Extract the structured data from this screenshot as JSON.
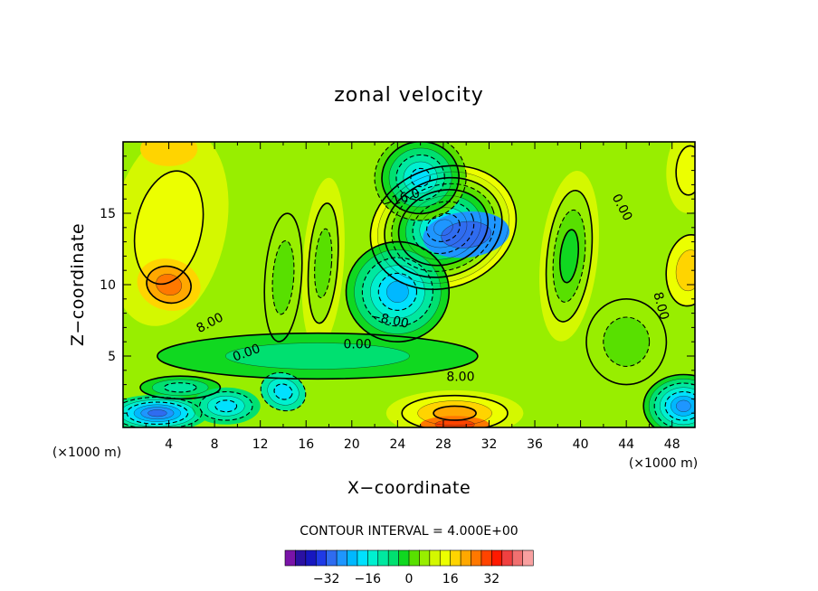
{
  "chart_data": {
    "type": "contour",
    "title": "zonal velocity",
    "xlabel": "X−coordinate",
    "ylabel": "Z−coordinate",
    "x_unit_left": "(×1000 m)",
    "x_unit_right": "(×1000 m)",
    "xlim": [
      0,
      50
    ],
    "ylim": [
      0,
      20
    ],
    "x_ticks": [
      4,
      8,
      12,
      16,
      20,
      24,
      28,
      32,
      36,
      40,
      44,
      48
    ],
    "y_ticks": [
      5,
      10,
      15
    ],
    "contour_interval_text": "CONTOUR INTERVAL = 4.000E+00",
    "contour_labels": [
      {
        "text": "−16.0",
        "x": 24.3,
        "y": 16.0,
        "angle": -18
      },
      {
        "text": "0.00",
        "x": 43.6,
        "y": 15.4,
        "angle": 62
      },
      {
        "text": "8.00",
        "x": 7.6,
        "y": 7.3,
        "angle": -28
      },
      {
        "text": "−8.00",
        "x": 23.3,
        "y": 7.5,
        "angle": 12
      },
      {
        "text": "8.00",
        "x": 47.0,
        "y": 8.5,
        "angle": 75
      },
      {
        "text": "0.00",
        "x": 10.8,
        "y": 5.2,
        "angle": -20
      },
      {
        "text": "0.00",
        "x": 20.5,
        "y": 5.8,
        "angle": 0
      },
      {
        "text": "8.00",
        "x": 29.5,
        "y": 3.5,
        "angle": 0
      }
    ],
    "field_features": [
      {
        "x": 28,
        "y": 14,
        "sx": 6.5,
        "sy": 4.2,
        "a": -20
      },
      {
        "x": 30,
        "y": 13.5,
        "sx": 3.8,
        "sy": 1.6,
        "a": -6
      },
      {
        "x": 26,
        "y": 17.5,
        "sx": 4.0,
        "sy": 3.0,
        "a": -6
      },
      {
        "x": 24,
        "y": 9.5,
        "sx": 4.5,
        "sy": 3.5,
        "a": -4
      },
      {
        "x": 17.5,
        "y": 11.5,
        "sx": 1.8,
        "sy": 6.0,
        "a": 4
      },
      {
        "x": 14,
        "y": 10.5,
        "sx": 1.6,
        "sy": 4.5,
        "a": 4
      },
      {
        "x": 39,
        "y": 12,
        "sx": 2.5,
        "sy": 6.0,
        "a": 6
      },
      {
        "x": 4,
        "y": 14,
        "sx": 5.0,
        "sy": 7.0,
        "a": 12
      },
      {
        "x": 4,
        "y": 10,
        "sx": 2.8,
        "sy": 1.8,
        "a": 15
      },
      {
        "x": 4,
        "y": 19.5,
        "sx": 2.5,
        "sy": 1.2,
        "a": 0
      },
      {
        "x": 49.5,
        "y": 11,
        "sx": 2.0,
        "sy": 2.5,
        "a": 6
      },
      {
        "x": 49.5,
        "y": 18,
        "sx": 2.0,
        "sy": 3.0,
        "a": 3
      },
      {
        "x": 17,
        "y": 5,
        "sx": 14.0,
        "sy": 1.6,
        "a": 0
      },
      {
        "x": 5,
        "y": 2.8,
        "sx": 3.5,
        "sy": 0.8,
        "a": 0
      },
      {
        "x": 3,
        "y": 1,
        "sx": 4.5,
        "sy": 1.3,
        "a": 0
      },
      {
        "x": 9,
        "y": 1.5,
        "sx": 3.0,
        "sy": 1.3,
        "a": 0
      },
      {
        "x": 14,
        "y": 2.5,
        "sx": 2.0,
        "sy": 1.3,
        "a": 20
      },
      {
        "x": 29,
        "y": 1,
        "sx": 6.0,
        "sy": 1.6,
        "a": 0
      },
      {
        "x": 29,
        "y": 0.2,
        "sx": 3.0,
        "sy": 0.6,
        "a": 0
      },
      {
        "x": 49,
        "y": 1.5,
        "sx": 3.5,
        "sy": 2.2,
        "a": 0
      },
      {
        "x": 44,
        "y": 6,
        "sx": 3.5,
        "sy": 3.0,
        "a": 0
      }
    ],
    "colorbar": {
      "colors": [
        "#7a14a8",
        "#2b11a2",
        "#1717c0",
        "#1f3ae6",
        "#2f6cf0",
        "#1e96ff",
        "#00b8ff",
        "#00e1ff",
        "#00f0d0",
        "#00e8a0",
        "#00e070",
        "#10d820",
        "#58e000",
        "#98ee00",
        "#d4f800",
        "#ecff00",
        "#ffd400",
        "#ffa800",
        "#ff7800",
        "#ff4400",
        "#ff1a00",
        "#f04040",
        "#f07070",
        "#f8a0a0"
      ],
      "tick_labels": [
        "−32",
        "−16",
        "0",
        "16",
        "32"
      ],
      "tick_values": [
        -32,
        -16,
        0,
        16,
        32
      ],
      "vmin": -48,
      "vmax": 48
    }
  }
}
